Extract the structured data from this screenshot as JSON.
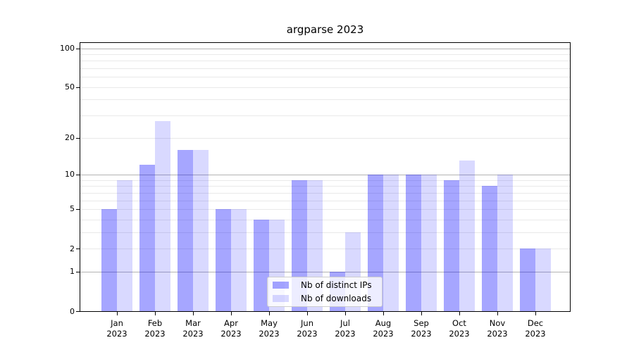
{
  "chart_data": {
    "type": "bar",
    "title": "argparse 2023",
    "categories": [
      "Jan",
      "Feb",
      "Mar",
      "Apr",
      "May",
      "Jun",
      "Jul",
      "Aug",
      "Sep",
      "Oct",
      "Nov",
      "Dec"
    ],
    "year": "2023",
    "series": [
      {
        "name": "Nb of distinct IPs",
        "color": "rgba(0,0,255,0.35)",
        "values": [
          5,
          12,
          16,
          5,
          4,
          9,
          1,
          10,
          10,
          9,
          8,
          2
        ]
      },
      {
        "name": "Nb of downloads",
        "color": "rgba(0,0,255,0.15)",
        "values": [
          9,
          27,
          16,
          5,
          4,
          9,
          3,
          10,
          10,
          13,
          10,
          2
        ]
      }
    ],
    "yscale": "log1p",
    "ylim": [
      0,
      100
    ],
    "y_ticks": [
      0,
      1,
      2,
      5,
      10,
      20,
      50,
      100
    ],
    "y_major_gridlines": [
      1,
      10,
      100
    ],
    "y_minor_gridlines": [
      2,
      3,
      4,
      5,
      6,
      7,
      8,
      9,
      20,
      30,
      40,
      50,
      60,
      70,
      80,
      90
    ],
    "grid": true,
    "legend_position": "lower center",
    "colors": {
      "grid_major": "#b3b3b3",
      "grid_minor": "#e9e9e9",
      "spine": "#000000",
      "text": "#000000",
      "background": "#ffffff"
    }
  }
}
